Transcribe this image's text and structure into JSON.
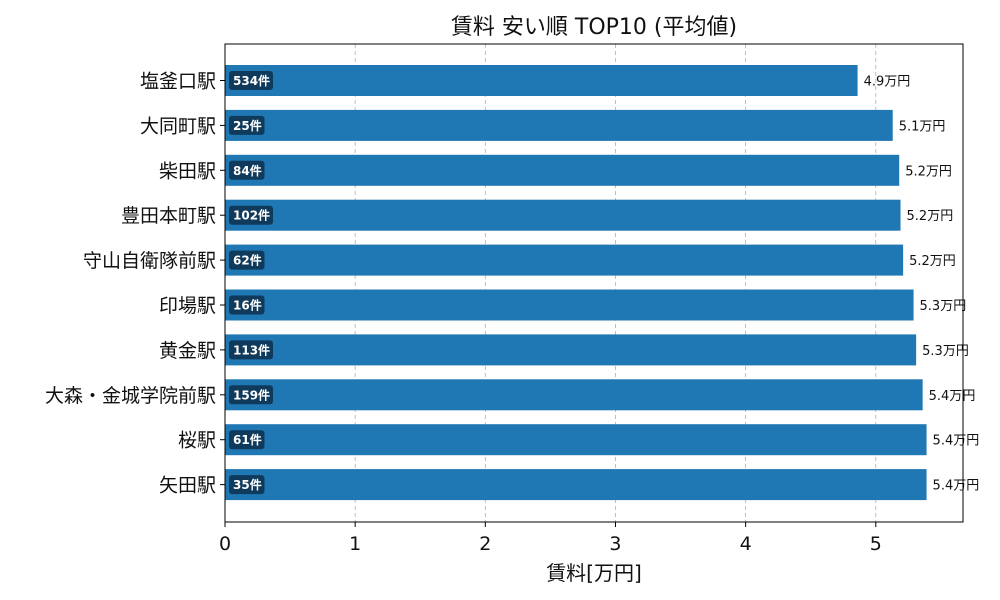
{
  "chart_data": {
    "type": "bar",
    "orientation": "horizontal",
    "title": "賃料 安い順 TOP10 (平均値)",
    "xlabel": "賃料[万円]",
    "ylabel": "",
    "xlim": [
      0,
      5.67
    ],
    "xticks": [
      "0",
      "1",
      "2",
      "3",
      "4",
      "5"
    ],
    "grid": "x-dashed",
    "colors": {
      "bar": "#1f77b4",
      "badge": "#0f3a5c"
    },
    "categories": [
      "塩釜口駅",
      "大同町駅",
      "柴田駅",
      "豊田本町駅",
      "守山自衛隊前駅",
      "印場駅",
      "黄金駅",
      "大森・金城学院前駅",
      "桜駅",
      "矢田駅"
    ],
    "values": [
      4.86,
      5.13,
      5.18,
      5.19,
      5.21,
      5.29,
      5.31,
      5.36,
      5.39,
      5.39
    ],
    "value_labels": [
      "4.9万円",
      "5.1万円",
      "5.2万円",
      "5.2万円",
      "5.2万円",
      "5.3万円",
      "5.3万円",
      "5.4万円",
      "5.4万円",
      "5.4万円"
    ],
    "counts": [
      "534件",
      "25件",
      "84件",
      "102件",
      "62件",
      "16件",
      "113件",
      "159件",
      "61件",
      "35件"
    ]
  }
}
